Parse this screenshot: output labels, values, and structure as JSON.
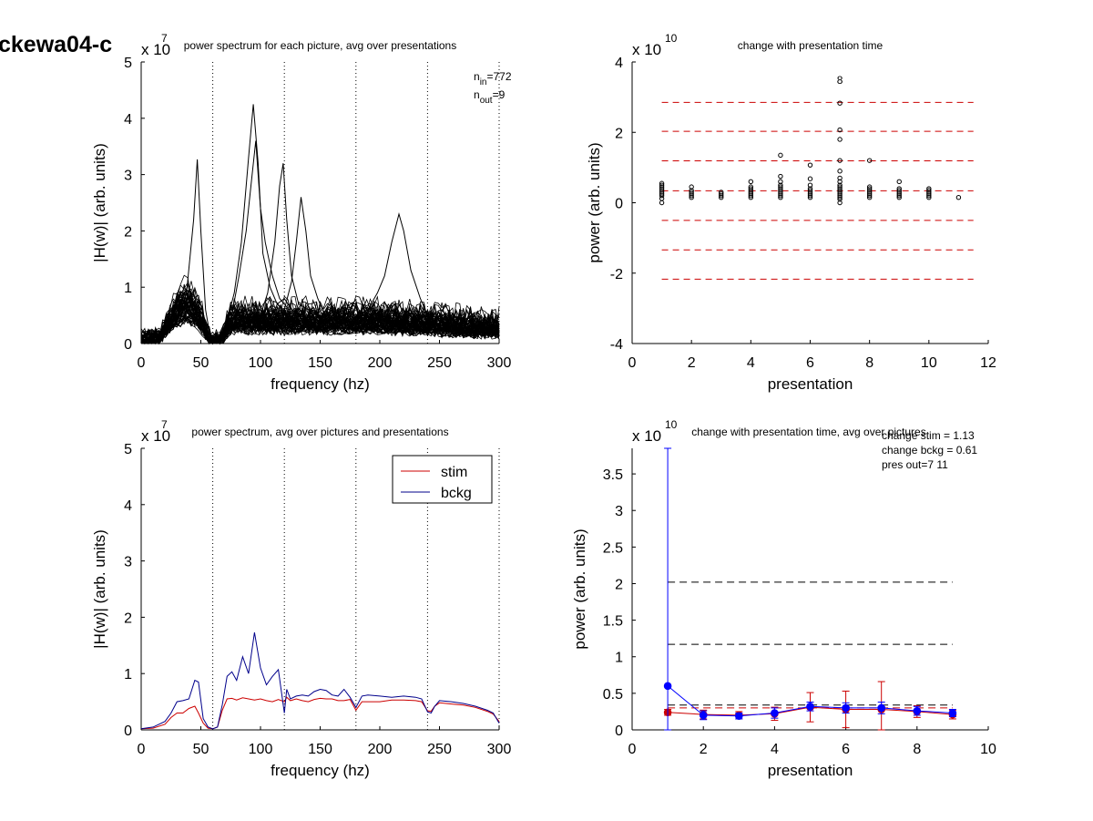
{
  "figure_title": "ckewa04-c",
  "chart_data": [
    {
      "id": "p1",
      "type": "line",
      "title": "power spectrum for each picture, avg over presentations",
      "xlabel": "frequency (hz)",
      "ylabel": "|H(w)| (arb. units)",
      "exponent_prefix": "x 10",
      "exponent": "7",
      "xlim": [
        0,
        300
      ],
      "ylim": [
        0,
        5
      ],
      "xticks": [
        0,
        50,
        100,
        150,
        200,
        250,
        300
      ],
      "yticks": [
        0,
        1,
        2,
        3,
        4,
        5
      ],
      "vlines": [
        60,
        120,
        180,
        240,
        300
      ],
      "annotations": [
        {
          "base": "n",
          "sub": "in",
          "value": "=772"
        },
        {
          "base": "n",
          "sub": "out",
          "value": "=9"
        }
      ],
      "line_count": 772,
      "peaks": [
        {
          "x": 47,
          "y": 3.27
        },
        {
          "x": 94,
          "y": 4.25
        },
        {
          "x": 119,
          "y": 3.2
        },
        {
          "x": 216,
          "y": 2.3
        }
      ],
      "color": "#000000"
    },
    {
      "id": "p2",
      "type": "scatter",
      "title": "change with presentation time",
      "xlabel": "presentation",
      "ylabel": "power (arb. units)",
      "exponent_prefix": "x 10",
      "exponent": "10",
      "xlim": [
        0,
        12
      ],
      "ylim": [
        -4,
        4
      ],
      "xticks": [
        0,
        2,
        4,
        6,
        8,
        10,
        12
      ],
      "yticks": [
        -4,
        -2,
        0,
        2,
        4
      ],
      "hlines": [
        2.85,
        2.03,
        1.19,
        0.34,
        -0.5,
        -1.34,
        -2.17
      ],
      "hline_color": "#cc0000",
      "hline_xrange": [
        1,
        11.5
      ],
      "point_label": {
        "text": "8",
        "x": 7,
        "y": 3.38
      },
      "points": [
        {
          "x": 1,
          "y": [
            0.0,
            0.12,
            0.2,
            0.25,
            0.3,
            0.35,
            0.4,
            0.45,
            0.5,
            0.55
          ]
        },
        {
          "x": 2,
          "y": [
            0.15,
            0.2,
            0.25,
            0.3,
            0.35,
            0.45
          ]
        },
        {
          "x": 3,
          "y": [
            0.15,
            0.2,
            0.25,
            0.3
          ]
        },
        {
          "x": 4,
          "y": [
            0.15,
            0.2,
            0.25,
            0.3,
            0.35,
            0.4,
            0.45,
            0.6
          ]
        },
        {
          "x": 5,
          "y": [
            0.15,
            0.2,
            0.25,
            0.3,
            0.35,
            0.4,
            0.45,
            0.5,
            0.6,
            0.75,
            1.35
          ]
        },
        {
          "x": 6,
          "y": [
            0.15,
            0.2,
            0.25,
            0.3,
            0.35,
            0.4,
            0.5,
            0.68,
            1.07
          ]
        },
        {
          "x": 7,
          "y": [
            0.0,
            0.1,
            0.15,
            0.2,
            0.25,
            0.3,
            0.35,
            0.4,
            0.45,
            0.5,
            0.6,
            0.7,
            0.9,
            1.2,
            1.8,
            2.07,
            2.83
          ]
        },
        {
          "x": 8,
          "y": [
            0.15,
            0.2,
            0.25,
            0.3,
            0.35,
            0.4,
            0.45,
            1.2
          ]
        },
        {
          "x": 9,
          "y": [
            0.15,
            0.2,
            0.25,
            0.3,
            0.35,
            0.4,
            0.6
          ]
        },
        {
          "x": 10,
          "y": [
            0.15,
            0.2,
            0.25,
            0.3,
            0.35,
            0.4
          ]
        },
        {
          "x": 11,
          "y": [
            0.15
          ]
        }
      ]
    },
    {
      "id": "p3",
      "type": "line",
      "title": "power spectrum, avg over pictures and presentations",
      "xlabel": "frequency (hz)",
      "ylabel": "|H(w)| (arb. units)",
      "exponent_prefix": "x 10",
      "exponent": "7",
      "xlim": [
        0,
        300
      ],
      "ylim": [
        0,
        5
      ],
      "xticks": [
        0,
        50,
        100,
        150,
        200,
        250,
        300
      ],
      "yticks": [
        0,
        1,
        2,
        3,
        4,
        5
      ],
      "vlines": [
        60,
        120,
        180,
        240,
        300
      ],
      "legend": [
        {
          "label": "stim",
          "color": "#cc0000"
        },
        {
          "label": "bckg",
          "color": "#00008b"
        }
      ],
      "legend_position": "top-right",
      "series": [
        {
          "name": "stim",
          "color": "#cc0000",
          "x": [
            0,
            10,
            20,
            25,
            30,
            35,
            40,
            45,
            48,
            52,
            56,
            60,
            64,
            68,
            72,
            76,
            80,
            85,
            90,
            95,
            100,
            105,
            110,
            115,
            120,
            122,
            125,
            130,
            135,
            140,
            145,
            150,
            155,
            160,
            165,
            170,
            175,
            180,
            185,
            190,
            200,
            210,
            220,
            230,
            235,
            240,
            243,
            246,
            250,
            260,
            270,
            280,
            290,
            295,
            300
          ],
          "y": [
            0.02,
            0.03,
            0.1,
            0.22,
            0.3,
            0.3,
            0.38,
            0.42,
            0.3,
            0.12,
            0.03,
            0.02,
            0.05,
            0.35,
            0.55,
            0.56,
            0.53,
            0.57,
            0.55,
            0.53,
            0.55,
            0.52,
            0.5,
            0.54,
            0.5,
            0.58,
            0.52,
            0.55,
            0.52,
            0.5,
            0.54,
            0.56,
            0.55,
            0.55,
            0.52,
            0.52,
            0.54,
            0.35,
            0.5,
            0.5,
            0.5,
            0.53,
            0.53,
            0.52,
            0.5,
            0.34,
            0.33,
            0.42,
            0.48,
            0.46,
            0.44,
            0.4,
            0.33,
            0.28,
            0.15
          ]
        },
        {
          "name": "bckg",
          "color": "#00008b",
          "x": [
            0,
            10,
            20,
            25,
            30,
            35,
            40,
            45,
            48,
            52,
            56,
            60,
            64,
            68,
            72,
            76,
            80,
            85,
            90,
            95,
            100,
            105,
            110,
            115,
            120,
            122,
            125,
            130,
            135,
            140,
            145,
            150,
            155,
            160,
            165,
            170,
            175,
            180,
            185,
            190,
            200,
            210,
            220,
            230,
            235,
            240,
            243,
            246,
            250,
            260,
            270,
            280,
            290,
            295,
            300
          ],
          "y": [
            0.02,
            0.05,
            0.15,
            0.3,
            0.5,
            0.52,
            0.55,
            0.88,
            0.85,
            0.2,
            0.05,
            0.02,
            0.05,
            0.45,
            0.95,
            1.03,
            0.88,
            1.3,
            1.0,
            1.73,
            1.1,
            0.8,
            0.95,
            1.07,
            0.3,
            0.72,
            0.55,
            0.6,
            0.62,
            0.6,
            0.68,
            0.72,
            0.7,
            0.62,
            0.6,
            0.72,
            0.58,
            0.4,
            0.6,
            0.62,
            0.6,
            0.58,
            0.6,
            0.58,
            0.55,
            0.32,
            0.3,
            0.42,
            0.52,
            0.5,
            0.47,
            0.42,
            0.35,
            0.3,
            0.12
          ]
        }
      ]
    },
    {
      "id": "p4",
      "type": "line",
      "title": "change with presentation time, avg over pictures",
      "xlabel": "presentation",
      "ylabel": "power (arb. units)",
      "exponent_prefix": "x 10",
      "exponent": "10",
      "xlim": [
        0,
        10
      ],
      "ylim": [
        0,
        3.85
      ],
      "xticks": [
        0,
        2,
        4,
        6,
        8,
        10
      ],
      "yticks": [
        0,
        0.5,
        1,
        1.5,
        2,
        2.5,
        3,
        3.5
      ],
      "text_block": [
        "change stim = 1.13",
        "change bckg = 0.61",
        "pres out=7 11"
      ],
      "hlines": [
        {
          "y": 2.02,
          "color": "#000000"
        },
        {
          "y": 1.17,
          "color": "#000000"
        },
        {
          "y": 0.34,
          "color": "#000000"
        },
        {
          "y": 0.3,
          "color": "#cc0000"
        }
      ],
      "hline_xrange": [
        1,
        9
      ],
      "series": [
        {
          "name": "stim",
          "color": "#cc0000",
          "x": [
            1,
            2,
            3,
            4,
            5,
            6,
            7,
            8,
            9
          ],
          "y": [
            0.24,
            0.21,
            0.2,
            0.22,
            0.31,
            0.28,
            0.28,
            0.25,
            0.21
          ],
          "err": [
            0.04,
            0.06,
            0.05,
            0.09,
            0.2,
            0.25,
            0.38,
            0.08,
            0.06
          ]
        },
        {
          "name": "bckg",
          "color": "#0000ff",
          "x": [
            1,
            2,
            3,
            4,
            5,
            6,
            7,
            8,
            9
          ],
          "y": [
            0.6,
            0.2,
            0.19,
            0.23,
            0.32,
            0.3,
            0.3,
            0.26,
            0.23
          ],
          "err": [
            3.25,
            0.06,
            0.04,
            0.07,
            0.06,
            0.07,
            0.08,
            0.06,
            0.05
          ]
        }
      ]
    }
  ]
}
